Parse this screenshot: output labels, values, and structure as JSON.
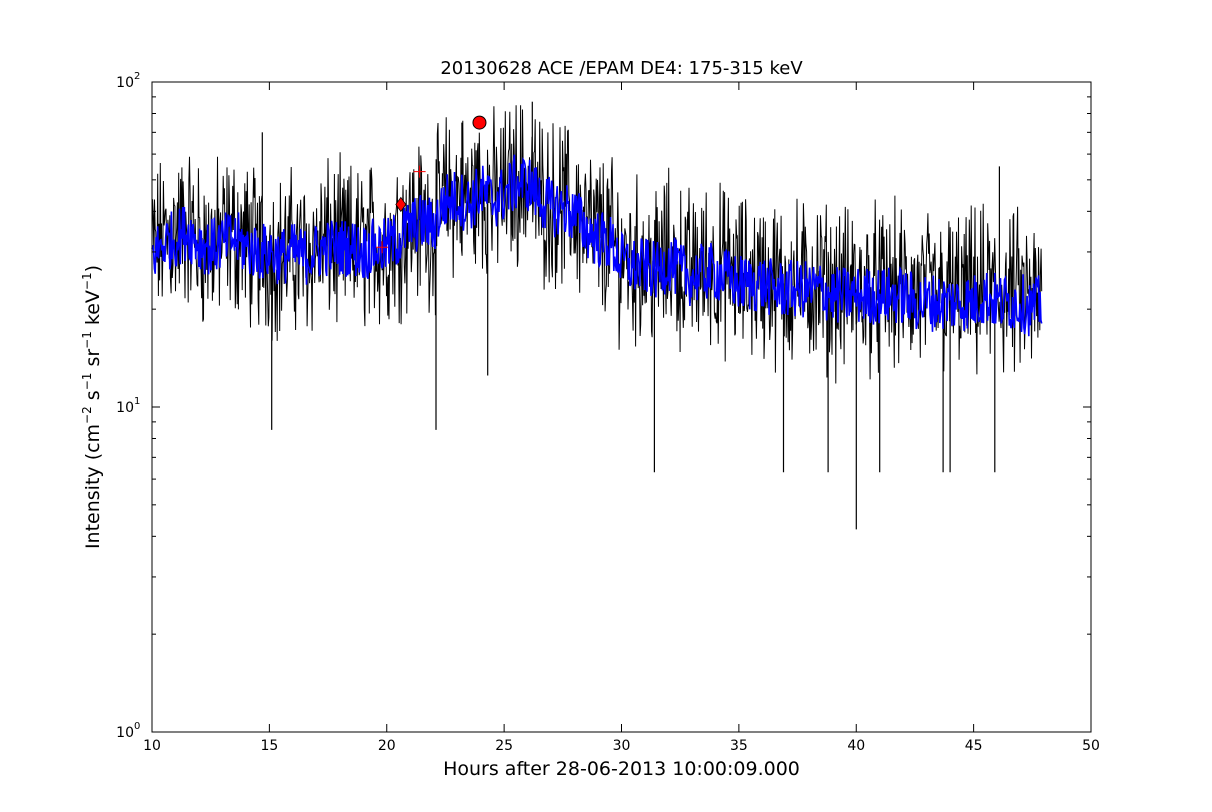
{
  "chart_data": {
    "type": "line",
    "title": "20130628 ACE /EPAM DE4: 175-315 keV",
    "xlabel": "Hours after 28-06-2013 10:00:09.000",
    "ylabel": {
      "text": "Intensity (cm",
      "exp1": "−2",
      "mid1": " s",
      "exp2": "−1",
      "mid2": " sr",
      "exp3": "−1",
      "mid3": " keV",
      "exp4": "−1",
      "end": ")"
    },
    "xlim": [
      10,
      50
    ],
    "ylim": [
      1,
      100
    ],
    "yscale": "log",
    "grid": false,
    "x_ticks": [
      10,
      15,
      20,
      25,
      30,
      35,
      40,
      45,
      50
    ],
    "y_ticks": [
      {
        "value": 1,
        "base": "10",
        "exp": "0"
      },
      {
        "value": 10,
        "base": "10",
        "exp": "1"
      },
      {
        "value": 100,
        "base": "10",
        "exp": "2"
      }
    ],
    "series": [
      {
        "color": "#000000",
        "style": "raw-line",
        "points": [
          [
            10.0,
            30
          ],
          [
            10.5,
            33
          ],
          [
            11.0,
            34
          ],
          [
            11.5,
            36
          ],
          [
            12.0,
            32
          ],
          [
            12.5,
            31
          ],
          [
            13.0,
            33
          ],
          [
            13.5,
            34
          ],
          [
            14.0,
            32
          ],
          [
            14.5,
            30
          ],
          [
            15.0,
            30
          ],
          [
            15.5,
            29
          ],
          [
            16.0,
            30
          ],
          [
            16.5,
            29
          ],
          [
            17.0,
            31
          ],
          [
            17.5,
            32
          ],
          [
            18.0,
            31
          ],
          [
            18.5,
            31
          ],
          [
            19.0,
            31
          ],
          [
            19.5,
            32
          ],
          [
            20.0,
            31
          ],
          [
            20.5,
            34
          ],
          [
            21.0,
            37
          ],
          [
            21.5,
            37
          ],
          [
            22.0,
            36
          ],
          [
            22.5,
            44
          ],
          [
            23.0,
            45
          ],
          [
            23.5,
            43
          ],
          [
            24.0,
            47
          ],
          [
            24.5,
            44
          ],
          [
            25.0,
            46
          ],
          [
            25.5,
            50
          ],
          [
            26.0,
            50
          ],
          [
            26.5,
            44
          ],
          [
            27.0,
            42
          ],
          [
            27.5,
            42
          ],
          [
            28.0,
            40
          ],
          [
            28.5,
            36
          ],
          [
            29.0,
            34
          ],
          [
            29.5,
            33
          ],
          [
            30.0,
            29
          ],
          [
            30.5,
            28
          ],
          [
            31.0,
            28
          ],
          [
            31.5,
            27
          ],
          [
            32.0,
            29
          ],
          [
            32.5,
            27
          ],
          [
            33.0,
            26
          ],
          [
            33.5,
            27
          ],
          [
            34.0,
            27
          ],
          [
            34.5,
            26
          ],
          [
            35.0,
            25
          ],
          [
            35.5,
            25
          ],
          [
            36.0,
            25
          ],
          [
            36.5,
            24
          ],
          [
            37.0,
            24
          ],
          [
            37.5,
            24
          ],
          [
            38.0,
            24
          ],
          [
            38.5,
            24
          ],
          [
            39.0,
            23
          ],
          [
            39.5,
            23
          ],
          [
            40.0,
            23
          ],
          [
            40.5,
            23
          ],
          [
            41.0,
            23
          ],
          [
            41.5,
            23
          ],
          [
            42.0,
            23
          ],
          [
            42.5,
            22
          ],
          [
            43.0,
            22
          ],
          [
            43.5,
            22
          ],
          [
            44.0,
            22
          ],
          [
            44.5,
            22
          ],
          [
            45.0,
            22
          ],
          [
            45.5,
            23
          ],
          [
            46.0,
            22
          ],
          [
            46.5,
            22
          ],
          [
            47.0,
            22
          ],
          [
            47.5,
            21
          ],
          [
            47.9,
            21
          ]
        ],
        "spikes": [
          [
            15.1,
            8.5
          ],
          [
            22.1,
            8.5
          ],
          [
            24.3,
            12.5
          ],
          [
            26.2,
            87
          ],
          [
            31.4,
            6.3
          ],
          [
            36.9,
            6.3
          ],
          [
            38.8,
            6.3
          ],
          [
            40.0,
            4.2
          ],
          [
            41.0,
            6.3
          ],
          [
            43.7,
            6.3
          ],
          [
            44.0,
            6.3
          ],
          [
            45.9,
            6.3
          ],
          [
            14.7,
            70
          ],
          [
            23.2,
            75
          ],
          [
            46.1,
            55
          ]
        ]
      },
      {
        "color": "#0000ff",
        "style": "smoothed-line",
        "points": [
          [
            10.0,
            29
          ],
          [
            10.5,
            32
          ],
          [
            11.0,
            33
          ],
          [
            11.5,
            35
          ],
          [
            12.0,
            32
          ],
          [
            12.5,
            31
          ],
          [
            13.0,
            32
          ],
          [
            13.5,
            33
          ],
          [
            14.0,
            31
          ],
          [
            14.5,
            30
          ],
          [
            15.0,
            30
          ],
          [
            15.5,
            29
          ],
          [
            16.0,
            30
          ],
          [
            16.5,
            29
          ],
          [
            17.0,
            30
          ],
          [
            17.5,
            31
          ],
          [
            18.0,
            31
          ],
          [
            18.5,
            31
          ],
          [
            19.0,
            30
          ],
          [
            19.5,
            31
          ],
          [
            20.0,
            31
          ],
          [
            20.5,
            33
          ],
          [
            21.0,
            36
          ],
          [
            21.5,
            37
          ],
          [
            22.0,
            36
          ],
          [
            22.5,
            43
          ],
          [
            23.0,
            44
          ],
          [
            23.5,
            42
          ],
          [
            24.0,
            46
          ],
          [
            24.5,
            43
          ],
          [
            25.0,
            45
          ],
          [
            25.5,
            49
          ],
          [
            26.0,
            49
          ],
          [
            26.5,
            44
          ],
          [
            27.0,
            41
          ],
          [
            27.5,
            41
          ],
          [
            28.0,
            39
          ],
          [
            28.5,
            35
          ],
          [
            29.0,
            33
          ],
          [
            29.5,
            32
          ],
          [
            30.0,
            28
          ],
          [
            30.5,
            27
          ],
          [
            31.0,
            27
          ],
          [
            31.5,
            26
          ],
          [
            32.0,
            28
          ],
          [
            32.5,
            26
          ],
          [
            33.0,
            25
          ],
          [
            33.5,
            26
          ],
          [
            34.0,
            26
          ],
          [
            34.5,
            25
          ],
          [
            35.0,
            24
          ],
          [
            35.5,
            24
          ],
          [
            36.0,
            24
          ],
          [
            36.5,
            23
          ],
          [
            37.0,
            23
          ],
          [
            37.5,
            23
          ],
          [
            38.0,
            23
          ],
          [
            38.5,
            23
          ],
          [
            39.0,
            22
          ],
          [
            39.5,
            22
          ],
          [
            40.0,
            22
          ],
          [
            40.5,
            22
          ],
          [
            41.0,
            22
          ],
          [
            41.5,
            22
          ],
          [
            42.0,
            22
          ],
          [
            42.5,
            21
          ],
          [
            43.0,
            21
          ],
          [
            43.5,
            21
          ],
          [
            44.0,
            21
          ],
          [
            44.5,
            21
          ],
          [
            45.0,
            21
          ],
          [
            45.5,
            22
          ],
          [
            46.0,
            21
          ],
          [
            46.5,
            21
          ],
          [
            47.0,
            21
          ],
          [
            47.5,
            20
          ],
          [
            47.9,
            21
          ]
        ]
      }
    ],
    "markers": [
      {
        "shape": "circle",
        "x": 23.95,
        "y": 75,
        "color": "#ff0000"
      },
      {
        "shape": "diamond",
        "x": 20.6,
        "y": 42,
        "color": "#ff0000"
      },
      {
        "shape": "plus",
        "x": 19.8,
        "y": 31,
        "color": "#ff0000"
      },
      {
        "shape": "plus",
        "x": 21.4,
        "y": 53,
        "color": "#ff0000"
      }
    ]
  }
}
